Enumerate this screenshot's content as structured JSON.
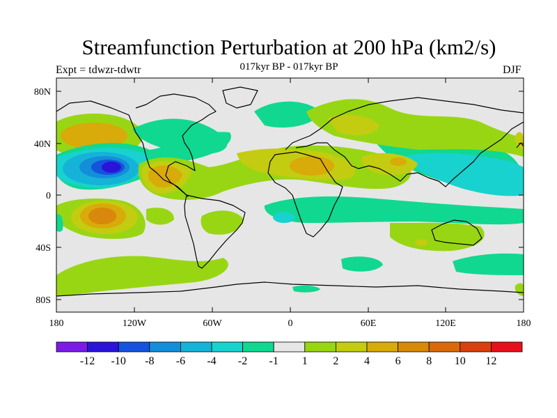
{
  "title": "Streamfunction Perturbation at 200 hPa (km2/s)",
  "subtitle": "017kyr BP - 017kyr BP",
  "experiment": "Expt = tdwzr-tdwtr",
  "season": "DJF",
  "axes": {
    "lat_labels": [
      "80N",
      "40N",
      "0",
      "40S",
      "80S"
    ],
    "lon_labels": [
      "180",
      "120W",
      "60W",
      "0",
      "60E",
      "120E",
      "180"
    ]
  },
  "legend": {
    "colors": [
      "#7c1ae6",
      "#2a14d8",
      "#1553dd",
      "#148ed8",
      "#15b3d8",
      "#18d2cf",
      "#10d890",
      "#e6e6e6",
      "#98d613",
      "#c3cc10",
      "#d8aa0a",
      "#d8880a",
      "#d86a0b",
      "#d8410b",
      "#e6101a"
    ],
    "labels": [
      "-12",
      "-10",
      "-8",
      "-6",
      "-4",
      "-2",
      "-1",
      "1",
      "2",
      "4",
      "6",
      "8",
      "10",
      "12"
    ]
  },
  "colors": {
    "background": "#e6e6e6",
    "land": "#000000"
  }
}
